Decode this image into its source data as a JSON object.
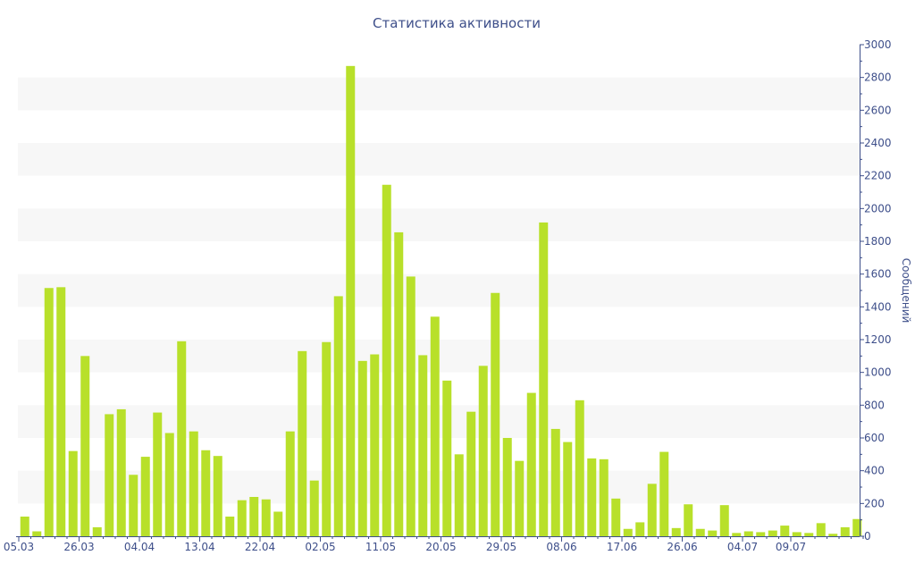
{
  "chart_data": {
    "type": "bar",
    "title": "Статистика активности",
    "ylabel": "Сообщений",
    "xlabel": "",
    "ylim": [
      0,
      3000
    ],
    "yticks": [
      0,
      200,
      400,
      600,
      800,
      1000,
      1200,
      1400,
      1600,
      1800,
      2000,
      2200,
      2400,
      2600,
      2800,
      3000
    ],
    "y_axis_position": "right",
    "grid": "alternating horizontal bands",
    "bar_color": "#b8e02a",
    "band_color": "#f7f7f7",
    "text_color": "#3e4f8a",
    "xtick_labels": [
      {
        "index": 0,
        "label": "05.03"
      },
      {
        "index": 5,
        "label": "26.03"
      },
      {
        "index": 10,
        "label": "04.04"
      },
      {
        "index": 15,
        "label": "13.04"
      },
      {
        "index": 20,
        "label": "22.04"
      },
      {
        "index": 25,
        "label": "02.05"
      },
      {
        "index": 30,
        "label": "11.05"
      },
      {
        "index": 35,
        "label": "20.05"
      },
      {
        "index": 40,
        "label": "29.05"
      },
      {
        "index": 45,
        "label": "08.06"
      },
      {
        "index": 50,
        "label": "17.06"
      },
      {
        "index": 55,
        "label": "26.06"
      },
      {
        "index": 60,
        "label": "04.07"
      },
      {
        "index": 64,
        "label": "09.07"
      }
    ],
    "values": [
      120,
      30,
      1515,
      1520,
      520,
      1100,
      55,
      745,
      775,
      375,
      485,
      755,
      630,
      1190,
      640,
      525,
      490,
      120,
      220,
      240,
      225,
      150,
      640,
      1130,
      340,
      1185,
      1465,
      2870,
      1070,
      1110,
      2145,
      1855,
      1585,
      1105,
      1340,
      950,
      500,
      760,
      1040,
      1485,
      600,
      460,
      875,
      1915,
      655,
      575,
      830,
      475,
      470,
      230,
      45,
      85,
      320,
      515,
      50,
      195,
      45,
      35,
      190,
      20,
      30,
      25,
      35,
      65,
      25,
      20,
      80,
      15,
      55,
      105
    ]
  }
}
